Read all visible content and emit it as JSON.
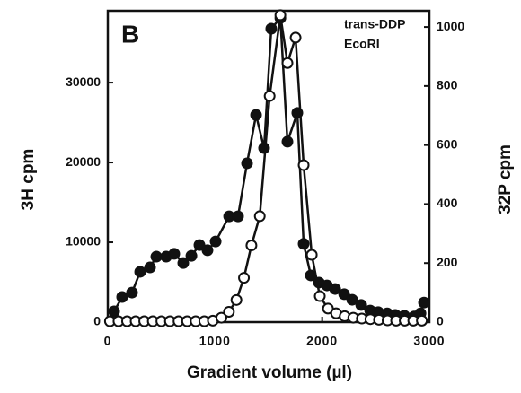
{
  "chart_data": {
    "type": "line",
    "panel_label": "B",
    "annotations": [
      "trans-DDP",
      "EcoRI"
    ],
    "xlabel": "Gradient volume (µl)",
    "ylabel": "3H  cpm",
    "y2label": "32P  cpm",
    "xlim": [
      0,
      3000
    ],
    "xticks": [
      0,
      1000,
      2000,
      3000
    ],
    "ylim": [
      0,
      39000
    ],
    "yticks": [
      0,
      10000,
      20000,
      30000
    ],
    "y2lim": [
      0,
      1055
    ],
    "y2ticks": [
      0,
      200,
      400,
      600,
      800,
      1000
    ],
    "series": [
      {
        "name": "3H",
        "marker": "filled",
        "color": "#111111",
        "axis": "y",
        "x": [
          59,
          134,
          226,
          302,
          394,
          453,
          545,
          620,
          704,
          780,
          855,
          930,
          1006,
          1132,
          1215,
          1299,
          1383,
          1458,
          1525,
          1610,
          1676,
          1768,
          1827,
          1894,
          1970,
          2045,
          2121,
          2205,
          2280,
          2364,
          2448,
          2523,
          2607,
          2682,
          2766,
          2858,
          2917,
          2950
        ],
        "values": [
          1350,
          3150,
          3700,
          6300,
          6850,
          8200,
          8200,
          8550,
          7400,
          8300,
          9650,
          9000,
          10100,
          13250,
          13250,
          19900,
          25950,
          21800,
          36750,
          38100,
          22600,
          26200,
          9800,
          5850,
          4950,
          4600,
          4150,
          3500,
          2800,
          2150,
          1450,
          1250,
          1100,
          900,
          800,
          700,
          1100,
          2450
        ]
      },
      {
        "name": "32P",
        "marker": "open",
        "color": "#111111",
        "axis": "y2",
        "x": [
          20,
          100,
          180,
          260,
          340,
          420,
          500,
          580,
          660,
          740,
          820,
          900,
          980,
          1060,
          1130,
          1200,
          1270,
          1340,
          1418,
          1510,
          1610,
          1676,
          1752,
          1827,
          1903,
          1978,
          2054,
          2130,
          2210,
          2290,
          2370,
          2450,
          2530,
          2610,
          2690,
          2770,
          2850,
          2930
        ],
        "values": [
          3,
          3,
          3,
          3,
          3,
          3,
          3,
          3,
          3,
          3,
          3,
          3,
          5,
          15,
          35,
          75,
          150,
          260,
          359,
          766,
          1040,
          878,
          964,
          532,
          228,
          88,
          46,
          30,
          20,
          15,
          12,
          10,
          8,
          6,
          5,
          5,
          5,
          5
        ]
      }
    ]
  }
}
